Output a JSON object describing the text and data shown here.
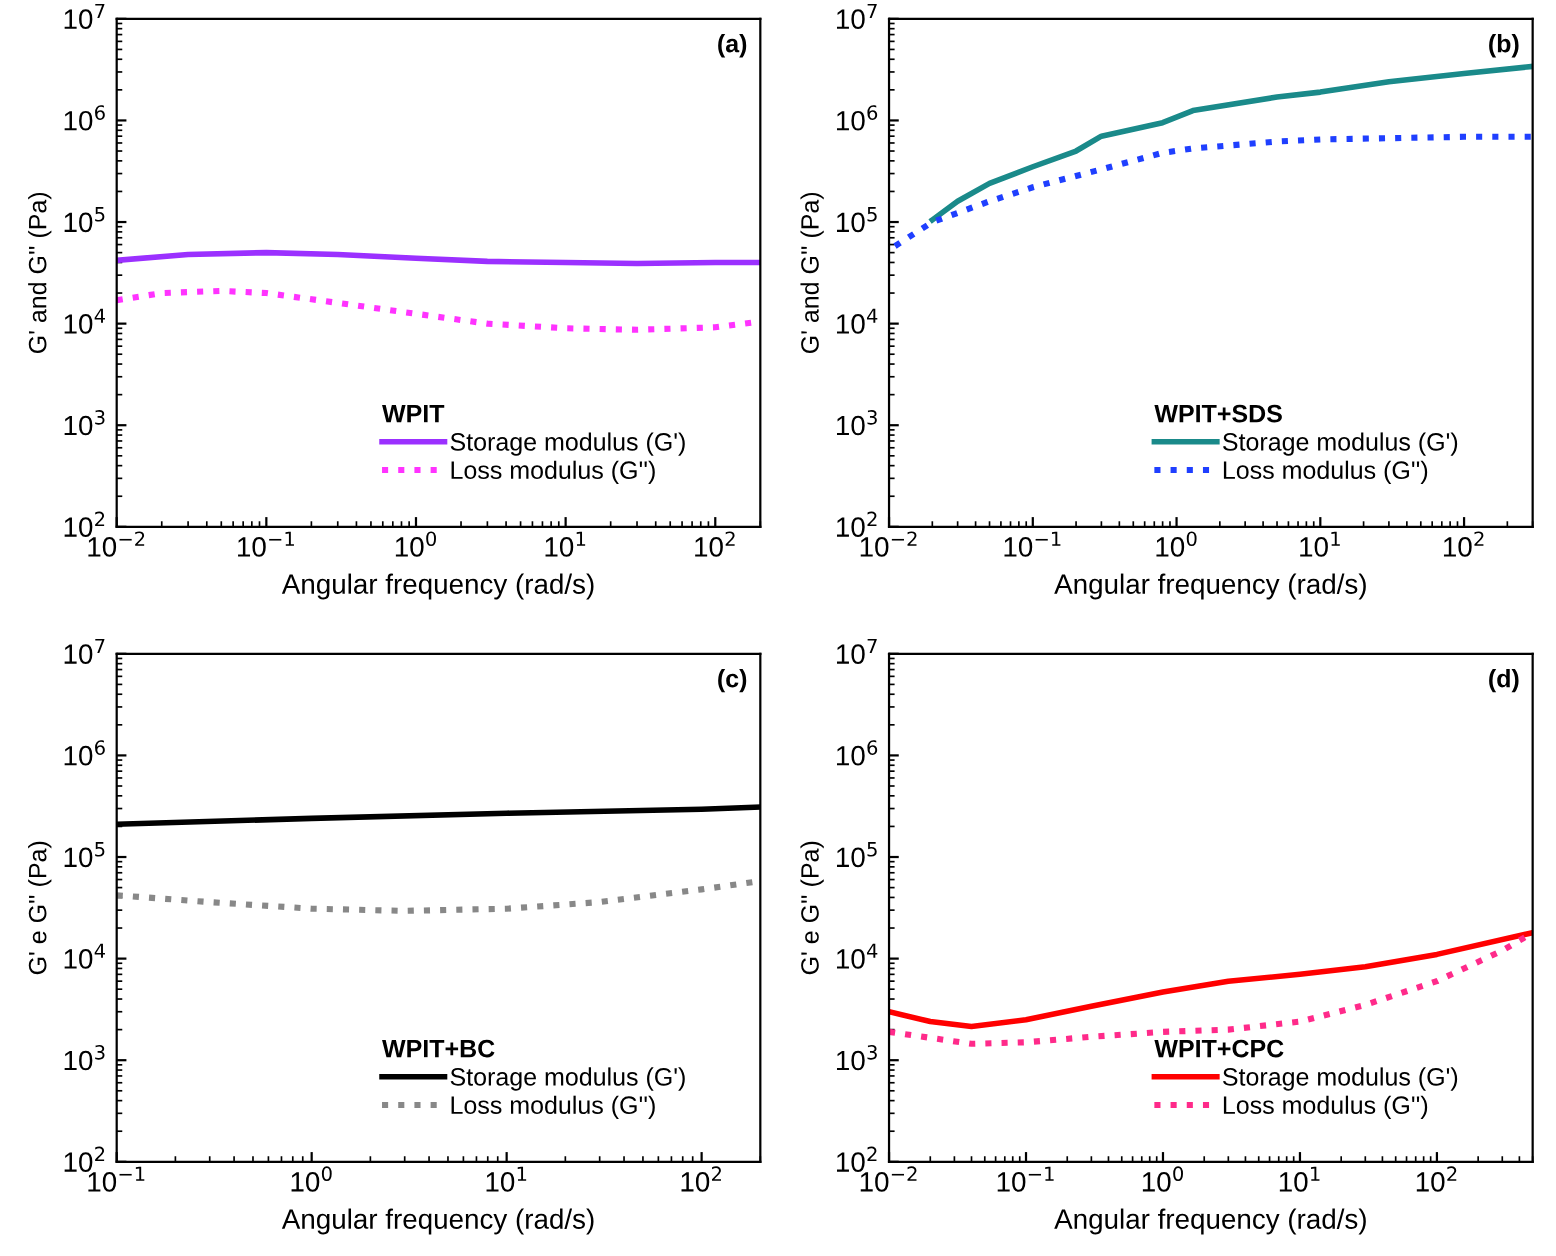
{
  "chart_data": [
    {
      "type": "line",
      "log": "xy",
      "xlabel": "Angular frequency (rad/s)",
      "ylabel": "G' and G'' (Pa)",
      "legend_title": "WPIT",
      "legend": "bottom right",
      "annotations": [
        "(a)"
      ],
      "xlim": [
        0.01,
        200
      ],
      "ylim": [
        100,
        10000000
      ],
      "xticks": [
        {
          "value": 0.01,
          "label": "10$^{−2}$"
        },
        {
          "value": 0.1,
          "label": "10$^{−1}$"
        },
        {
          "value": 1,
          "label": "10$^{0}$"
        },
        {
          "value": 10,
          "label": "10$^{1}$"
        },
        {
          "value": 100,
          "label": "10$^{2}$"
        }
      ],
      "yticks": [
        {
          "value": 100,
          "label": "10$^{2}$"
        },
        {
          "value": 1000,
          "label": "10$^{3}$"
        },
        {
          "value": 10000,
          "label": "10$^{4}$"
        },
        {
          "value": 100000,
          "label": "10$^{5}$"
        },
        {
          "value": 1000000,
          "label": "10$^{6}$"
        },
        {
          "value": 10000000,
          "label": "10$^{7}$"
        }
      ],
      "series": [
        {
          "name": "Storage modulus (G')",
          "color": "#9b30ff",
          "line_style": "solid",
          "x": [
            0.01,
            0.03,
            0.1,
            0.3,
            1,
            3,
            10,
            30,
            100,
            200
          ],
          "values": [
            42000,
            48000,
            50000,
            48000,
            44000,
            41000,
            40000,
            39000,
            40000,
            40000
          ]
        },
        {
          "name": "Loss modulus (G'')",
          "color": "#ff33ff",
          "line_style": "dotted",
          "x": [
            0.01,
            0.02,
            0.05,
            0.1,
            0.3,
            1,
            3,
            10,
            30,
            100,
            200
          ],
          "values": [
            17000,
            20000,
            21000,
            20000,
            16000,
            12500,
            10000,
            9000,
            8700,
            9200,
            10500
          ]
        }
      ]
    },
    {
      "type": "line",
      "log": "xy",
      "xlabel": "Angular frequency (rad/s)",
      "ylabel": "G' and G'' (Pa)",
      "legend_title": "WPIT+SDS",
      "legend": "bottom right",
      "annotations": [
        "(b)"
      ],
      "xlim": [
        0.01,
        300
      ],
      "ylim": [
        100,
        10000000
      ],
      "xticks": [
        {
          "value": 0.01,
          "label": "10$^{−2}$"
        },
        {
          "value": 0.1,
          "label": "10$^{−1}$"
        },
        {
          "value": 1,
          "label": "10$^{0}$"
        },
        {
          "value": 10,
          "label": "10$^{1}$"
        },
        {
          "value": 100,
          "label": "10$^{2}$"
        }
      ],
      "yticks": [
        {
          "value": 100,
          "label": "10$^{2}$"
        },
        {
          "value": 1000,
          "label": "10$^{3}$"
        },
        {
          "value": 10000,
          "label": "10$^{4}$"
        },
        {
          "value": 100000,
          "label": "10$^{5}$"
        },
        {
          "value": 1000000,
          "label": "10$^{6}$"
        },
        {
          "value": 10000000,
          "label": "10$^{7}$"
        }
      ],
      "series": [
        {
          "name": "Storage modulus (G')",
          "color": "#1a8a8a",
          "line_style": "solid",
          "x": [
            0.02,
            0.03,
            0.05,
            0.1,
            0.2,
            0.3,
            0.8,
            1.3,
            5,
            10,
            30,
            100,
            300
          ],
          "values": [
            105000,
            160000,
            240000,
            350000,
            500000,
            700000,
            950000,
            1250000,
            1700000,
            1900000,
            2400000,
            2900000,
            3400000
          ]
        },
        {
          "name": "Loss modulus (G'')",
          "color": "#1f3fff",
          "line_style": "dotted",
          "x": [
            0.011,
            0.02,
            0.05,
            0.1,
            0.3,
            0.8,
            1.3,
            5,
            10,
            100,
            300
          ],
          "values": [
            58000,
            100000,
            160000,
            220000,
            330000,
            480000,
            530000,
            620000,
            650000,
            690000,
            690000
          ]
        }
      ]
    },
    {
      "type": "line",
      "log": "xy",
      "xlabel": "Angular frequency (rad/s)",
      "ylabel": "G' e G'' (Pa)",
      "legend_title": "WPIT+BC",
      "legend": "bottom right",
      "annotations": [
        "(c)"
      ],
      "xlim": [
        0.1,
        200
      ],
      "ylim": [
        100,
        10000000
      ],
      "xticks": [
        {
          "value": 0.1,
          "label": "10$^{−1}$"
        },
        {
          "value": 1,
          "label": "10$^{0}$"
        },
        {
          "value": 10,
          "label": "10$^{1}$"
        },
        {
          "value": 100,
          "label": "10$^{2}$"
        }
      ],
      "yticks": [
        {
          "value": 100,
          "label": "10$^{2}$"
        },
        {
          "value": 1000,
          "label": "10$^{3}$"
        },
        {
          "value": 10000,
          "label": "10$^{4}$"
        },
        {
          "value": 100000,
          "label": "10$^{5}$"
        },
        {
          "value": 1000000,
          "label": "10$^{6}$"
        },
        {
          "value": 10000000,
          "label": "10$^{7}$"
        }
      ],
      "series": [
        {
          "name": "Storage modulus (G')",
          "color": "#000000",
          "line_style": "solid",
          "x": [
            0.1,
            1,
            10,
            100,
            200
          ],
          "values": [
            210000,
            240000,
            270000,
            295000,
            310000
          ]
        },
        {
          "name": "Loss modulus (G'')",
          "color": "#888888",
          "line_style": "dotted",
          "x": [
            0.1,
            0.3,
            1,
            3,
            10,
            30,
            100,
            200
          ],
          "values": [
            42000,
            36000,
            31000,
            29500,
            31000,
            36000,
            48000,
            58000
          ]
        }
      ]
    },
    {
      "type": "line",
      "log": "xy",
      "xlabel": "Angular frequency (rad/s)",
      "ylabel": "G' e G'' (Pa)",
      "legend_title": "WPIT+CPC",
      "legend": "bottom right",
      "annotations": [
        "(d)"
      ],
      "xlim": [
        0.01,
        500
      ],
      "ylim": [
        100,
        10000000
      ],
      "xticks": [
        {
          "value": 0.01,
          "label": "10$^{−2}$"
        },
        {
          "value": 0.1,
          "label": "10$^{−1}$"
        },
        {
          "value": 1,
          "label": "10$^{0}$"
        },
        {
          "value": 10,
          "label": "10$^{1}$"
        },
        {
          "value": 100,
          "label": "10$^{2}$"
        }
      ],
      "yticks": [
        {
          "value": 100,
          "label": "10$^{2}$"
        },
        {
          "value": 1000,
          "label": "10$^{3}$"
        },
        {
          "value": 10000,
          "label": "10$^{4}$"
        },
        {
          "value": 100000,
          "label": "10$^{5}$"
        },
        {
          "value": 1000000,
          "label": "10$^{6}$"
        },
        {
          "value": 10000000,
          "label": "10$^{7}$"
        }
      ],
      "series": [
        {
          "name": "Storage modulus (G')",
          "color": "#ff0000",
          "line_style": "solid",
          "x": [
            0.01,
            0.02,
            0.04,
            0.1,
            0.3,
            1,
            3,
            10,
            30,
            100,
            500
          ],
          "values": [
            3000,
            2400,
            2150,
            2500,
            3400,
            4700,
            6000,
            7000,
            8300,
            11000,
            18000
          ]
        },
        {
          "name": "Loss modulus (G'')",
          "color": "#ff2a8a",
          "line_style": "dotted",
          "x": [
            0.01,
            0.04,
            0.1,
            0.3,
            1,
            3,
            10,
            30,
            100,
            300,
            500
          ],
          "values": [
            1900,
            1450,
            1500,
            1700,
            1900,
            2000,
            2400,
            3500,
            6000,
            12000,
            18000
          ]
        }
      ]
    }
  ]
}
